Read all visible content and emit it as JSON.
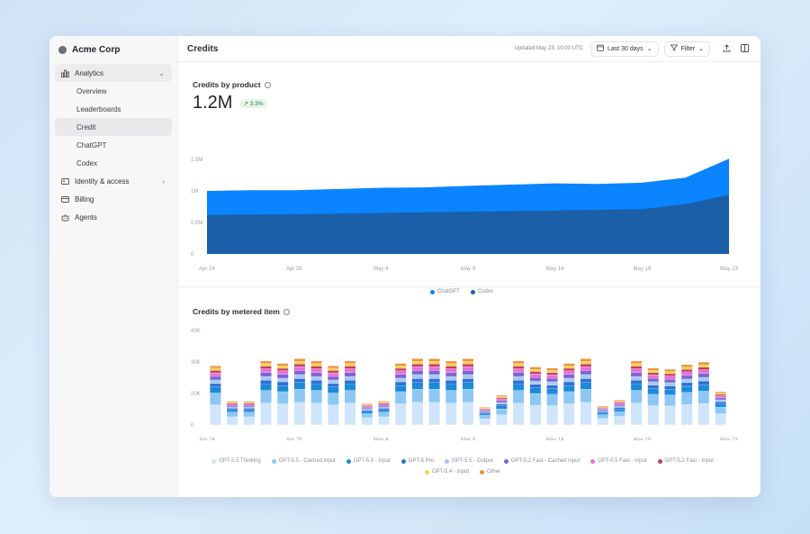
{
  "org": {
    "name": "Acme Corp"
  },
  "sidebar": {
    "analytics_label": "Analytics",
    "sub_items": [
      "Overview",
      "Leaderboards",
      "Credit",
      "ChatGPT",
      "Codex"
    ],
    "items": [
      {
        "label": "Identity & access"
      },
      {
        "label": "Billing"
      },
      {
        "label": "Agents"
      }
    ]
  },
  "header": {
    "title": "Credits",
    "updated": "Updated May 23, 10:00 UTC",
    "range_label": "Last 30 days",
    "filter_label": "Filter"
  },
  "chart_data": [
    {
      "type": "area",
      "title": "Credits by product",
      "total": "1.2M",
      "change": "↗ 3.3%",
      "x_ticks": [
        "Apr 24",
        "Apr 29",
        "May 4",
        "May 9",
        "May 14",
        "May 19",
        "May 23"
      ],
      "y_ticks": [
        "1.5M",
        "1M",
        "0.5M",
        "0"
      ],
      "ylim": [
        0,
        1500000
      ],
      "x": [
        0,
        1,
        2,
        3,
        4,
        5,
        6,
        7,
        8,
        9,
        10,
        11,
        12
      ],
      "series": [
        {
          "name": "Codex",
          "color": "#1a5fa8",
          "values": [
            620000,
            625000,
            630000,
            640000,
            650000,
            660000,
            670000,
            680000,
            690000,
            700000,
            710000,
            790000,
            940000
          ]
        },
        {
          "name": "ChatGPT",
          "color": "#0a84ff",
          "values": [
            380000,
            385000,
            380000,
            390000,
            400000,
            395000,
            410000,
            420000,
            430000,
            410000,
            420000,
            420000,
            570000
          ]
        }
      ]
    },
    {
      "type": "bar",
      "title": "Credits by metered item",
      "x_ticks": [
        "Apr 24",
        "Apr 29",
        "May 4",
        "May 9",
        "May 14",
        "May 19",
        "May 23"
      ],
      "y_ticks": [
        "40K",
        "30K",
        "20K",
        "0"
      ],
      "ylim": [
        0,
        40000
      ],
      "totals": [
        25000,
        10000,
        10000,
        27000,
        26000,
        28000,
        27000,
        25000,
        27000,
        9000,
        10000,
        26000,
        28000,
        28000,
        27000,
        28000,
        7500,
        12500,
        27000,
        24500,
        24000,
        26000,
        28000,
        8000,
        10500,
        27000,
        24000,
        23500,
        25500,
        26500,
        14000
      ],
      "series": [
        {
          "name": "GPT-5.5 Thinking",
          "color": "#cfe5fb"
        },
        {
          "name": "GPT-5.5 - Cached input",
          "color": "#8ec7f3"
        },
        {
          "name": "GPT-5.5 - Input",
          "color": "#1b8ad8"
        },
        {
          "name": "GPT-5 Pro",
          "color": "#2f6fd6"
        },
        {
          "name": "GPT-5.5 - Output",
          "color": "#a9c9ef"
        },
        {
          "name": "GPT-5.2 Fast - Cached input",
          "color": "#7c63d4"
        },
        {
          "name": "GPT-5.5 Fast - Input",
          "color": "#e672d8"
        },
        {
          "name": "GPT-5.2 Fast - Input",
          "color": "#c2405e"
        },
        {
          "name": "GPT-5.4 - Input",
          "color": "#f4d34a"
        },
        {
          "name": "Other",
          "color": "#f08f3e"
        }
      ],
      "shares": [
        0.34,
        0.2,
        0.1,
        0.06,
        0.06,
        0.06,
        0.06,
        0.04,
        0.04,
        0.04
      ]
    }
  ]
}
